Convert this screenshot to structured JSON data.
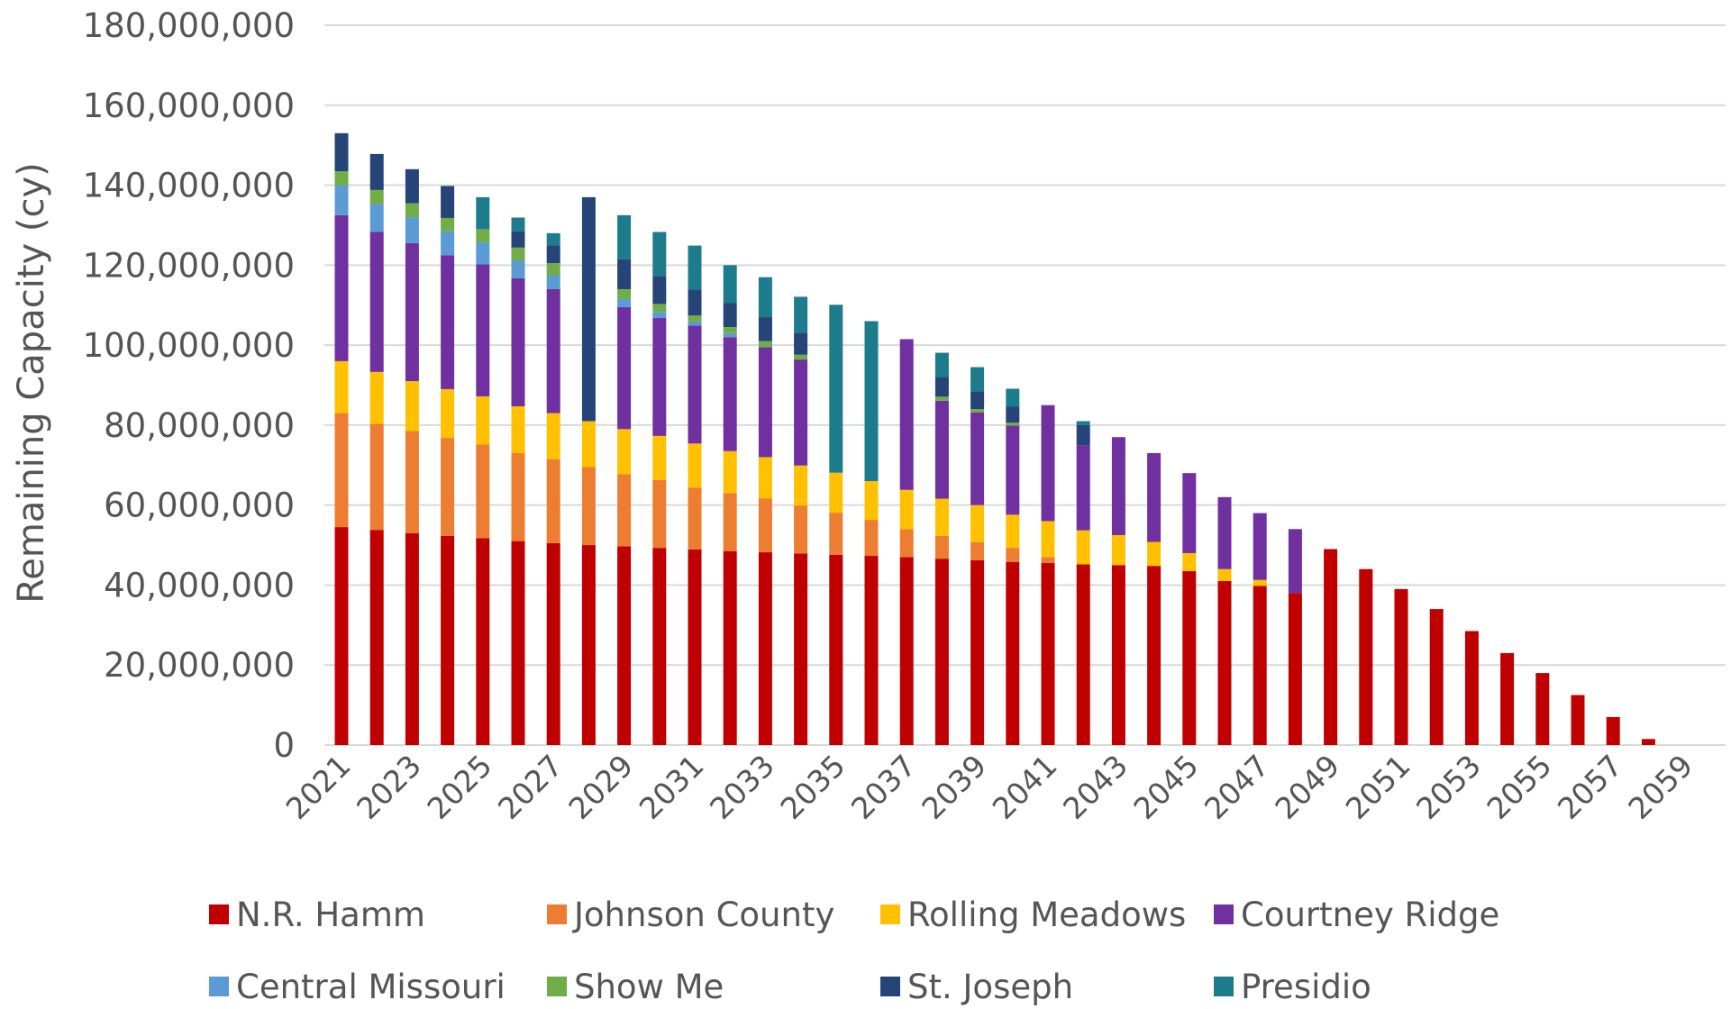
{
  "chart_data": {
    "type": "bar",
    "stacked": true,
    "title": "",
    "xlabel": "",
    "ylabel": "Remaining Capacity (cy)",
    "ylim": [
      0,
      180000000
    ],
    "yticks": [
      "180,000,000",
      "160,000,000",
      "140,000,000",
      "120,000,000",
      "100,000,000",
      "80,000,000",
      "60,000,000",
      "40,000,000",
      "20,000,000",
      "0"
    ],
    "ytick_values": [
      180000000,
      160000000,
      140000000,
      120000000,
      100000000,
      80000000,
      60000000,
      40000000,
      20000000,
      0
    ],
    "grid": true,
    "legend_position": "bottom",
    "categories": [
      2021,
      2022,
      2023,
      2024,
      2025,
      2026,
      2027,
      2028,
      2029,
      2030,
      2031,
      2032,
      2033,
      2034,
      2035,
      2036,
      2037,
      2038,
      2039,
      2040,
      2041,
      2042,
      2043,
      2044,
      2045,
      2046,
      2047,
      2048,
      2049,
      2050,
      2051,
      2052,
      2053,
      2054,
      2055,
      2056,
      2057,
      2058,
      2059
    ],
    "xtick_labels": [
      "2021",
      "2023",
      "2025",
      "2027",
      "2029",
      "2031",
      "2033",
      "2035",
      "2037",
      "2039",
      "2041",
      "2043",
      "2045",
      "2047",
      "2049",
      "2051",
      "2053",
      "2055",
      "2057",
      "2059"
    ],
    "series": [
      {
        "name": "N.R. Hamm",
        "color": "#c00000",
        "values": [
          54500000,
          53800000,
          53000000,
          52300000,
          51700000,
          51000000,
          50500000,
          50000000,
          49700000,
          49300000,
          48900000,
          48500000,
          48200000,
          47900000,
          47600000,
          47300000,
          47000000,
          46600000,
          46200000,
          45800000,
          45500000,
          45200000,
          45000000,
          44800000,
          43500000,
          41000000,
          39800000,
          38000000,
          49000000,
          44000000,
          39000000,
          34000000,
          28500000,
          23000000,
          18000000,
          12500000,
          7000000,
          1500000,
          0
        ]
      },
      {
        "name": "Johnson County",
        "color": "#ed7d31",
        "values": [
          28500000,
          26500000,
          25500000,
          24500000,
          23500000,
          22000000,
          21000000,
          19500000,
          18000000,
          17000000,
          15500000,
          14500000,
          13500000,
          12000000,
          10500000,
          9000000,
          7000000,
          5700000,
          4500000,
          3500000,
          1500000,
          0,
          0,
          0,
          0,
          0,
          0,
          0,
          0,
          0,
          0,
          0,
          0,
          0,
          0,
          0,
          0,
          0,
          0
        ]
      },
      {
        "name": "Rolling Meadows",
        "color": "#ffc000",
        "values": [
          13000000,
          13000000,
          12500000,
          12200000,
          12000000,
          11700000,
          11500000,
          11500000,
          11300000,
          11000000,
          11000000,
          10500000,
          10300000,
          10000000,
          10000000,
          9700000,
          9800000,
          9300000,
          9300000,
          8300000,
          9000000,
          8500000,
          7500000,
          6000000,
          4500000,
          3000000,
          1500000,
          0,
          0,
          0,
          0,
          0,
          0,
          0,
          0,
          0,
          0,
          0,
          0
        ]
      },
      {
        "name": "Courtney Ridge",
        "color": "#7030a0",
        "values": [
          36500000,
          35000000,
          34500000,
          33500000,
          33000000,
          32000000,
          31000000,
          0,
          30500000,
          29500000,
          29500000,
          28500000,
          27500000,
          26500000,
          0,
          0,
          37700000,
          24500000,
          23200000,
          22300000,
          29000000,
          21300000,
          24500000,
          22200000,
          20000000,
          18000000,
          16700000,
          16000000,
          0,
          0,
          0,
          0,
          0,
          0,
          0,
          0,
          0,
          0,
          0
        ]
      },
      {
        "name": "Central Missouri",
        "color": "#5b9bd5",
        "values": [
          7500000,
          7000000,
          6500000,
          6000000,
          5500000,
          4500000,
          3500000,
          0,
          2000000,
          1500000,
          1000000,
          1000000,
          0,
          0,
          0,
          0,
          0,
          0,
          0,
          0,
          0,
          0,
          0,
          0,
          0,
          0,
          0,
          0,
          0,
          0,
          0,
          0,
          0,
          0,
          0,
          0,
          0,
          0,
          0
        ]
      },
      {
        "name": "Show Me",
        "color": "#70ad47",
        "values": [
          3500000,
          3500000,
          3500000,
          3300000,
          3300000,
          3200000,
          3000000,
          0,
          2500000,
          2000000,
          1500000,
          1500000,
          1500000,
          1200000,
          0,
          0,
          0,
          1000000,
          800000,
          700000,
          0,
          0,
          0,
          0,
          0,
          0,
          0,
          0,
          0,
          0,
          0,
          0,
          0,
          0,
          0,
          0,
          0,
          0,
          0
        ]
      },
      {
        "name": "St. Joseph",
        "color": "#264478",
        "values": [
          9500000,
          9000000,
          8500000,
          8000000,
          0,
          4000000,
          4500000,
          56000000,
          7500000,
          7000000,
          6500000,
          6000000,
          6000000,
          5500000,
          0,
          0,
          0,
          5000000,
          4500000,
          4000000,
          0,
          5000000,
          0,
          0,
          0,
          0,
          0,
          0,
          0,
          0,
          0,
          0,
          0,
          0,
          0,
          0,
          0,
          0,
          0
        ]
      },
      {
        "name": "Presidio",
        "color": "#1c7c8c",
        "values": [
          0,
          0,
          0,
          0,
          8000000,
          3500000,
          3000000,
          0,
          11000000,
          11000000,
          11000000,
          9500000,
          10000000,
          9000000,
          42000000,
          40000000,
          0,
          6000000,
          6000000,
          4500000,
          0,
          1000000,
          0,
          0,
          0,
          0,
          0,
          0,
          0,
          0,
          0,
          0,
          0,
          0,
          0,
          0,
          0,
          0,
          0
        ]
      }
    ]
  }
}
